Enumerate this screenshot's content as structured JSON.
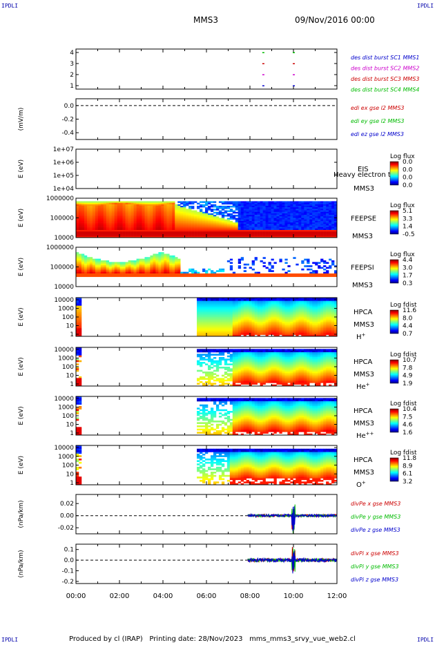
{
  "corners": {
    "tl": "IPDLI",
    "tr": "IPDLI",
    "bl": "IPDLI",
    "br": "IPDLI"
  },
  "header": {
    "spacecraft": "MMS3",
    "date": "09/Nov/2016 00:00"
  },
  "footer": {
    "produced_by": "Produced by cl (IRAP)",
    "printing_date": "Printing date: 28/Nov/2023",
    "filename": "mms_mms3_srvy_vue_web2.cl"
  },
  "time_axis": {
    "ticks": [
      "00:00",
      "02:00",
      "04:00",
      "06:00",
      "08:00",
      "10:00",
      "12:00"
    ]
  },
  "colors": {
    "red": "#cc0000",
    "green": "#00bb00",
    "blue": "#0000cc",
    "magenta": "#cc00cc"
  },
  "chart_data": [
    {
      "type": "scatter",
      "id": "burst",
      "x_unit": "hours",
      "xlim": [
        0,
        12
      ],
      "ylim": [
        0.5,
        4.5
      ],
      "ylabel": "",
      "yticks": [
        "4",
        "3",
        "2",
        "1"
      ],
      "legend": [
        {
          "text": "des dist burst SC1 MMS1",
          "color": "blue"
        },
        {
          "text": "des dist burst SC2 MMS2",
          "color": "magenta"
        },
        {
          "text": "des dist burst SC3 MMS3",
          "color": "red"
        },
        {
          "text": "des dist burst SC4 MMS4",
          "color": "green"
        }
      ],
      "marks": [
        {
          "x": 8.6,
          "y": 4,
          "color": "green"
        },
        {
          "x": 10.0,
          "y": 4,
          "color": "green"
        },
        {
          "x": 8.6,
          "y": 3,
          "color": "red"
        },
        {
          "x": 10.0,
          "y": 3,
          "color": "red"
        },
        {
          "x": 8.6,
          "y": 2,
          "color": "magenta"
        },
        {
          "x": 10.0,
          "y": 2,
          "color": "magenta"
        },
        {
          "x": 8.6,
          "y": 1,
          "color": "blue"
        },
        {
          "x": 10.0,
          "y": 1,
          "color": "blue"
        }
      ]
    },
    {
      "type": "line",
      "id": "edi",
      "ylabel": "(mV/m)",
      "ylim": [
        -0.5,
        0.1
      ],
      "yticks": [
        "0.0",
        "-0.2",
        "-0.4"
      ],
      "legend": [
        {
          "text": "edi ex gse l2 MMS3",
          "color": "red"
        },
        {
          "text": "edi ey gse l2 MMS3",
          "color": "green"
        },
        {
          "text": "edi ez gse l2 MMS3",
          "color": "blue"
        }
      ]
    },
    {
      "type": "heatmap",
      "id": "eis",
      "ylabel": "E (eV)",
      "yticks": [
        "1e+07",
        "1e+06",
        "1e+05",
        "1e+04"
      ],
      "labels": [
        "EIS",
        "MMS3"
      ],
      "overlay": "Heavy electron tof",
      "colorbar": {
        "title": "Log flux",
        "ticks": [
          "0.0",
          "0.0",
          "0.0",
          "0.0"
        ]
      },
      "empty": true
    },
    {
      "type": "heatmap",
      "id": "feepse",
      "ylabel": "E (eV)",
      "yticks": [
        "1000000",
        "100000",
        "10000"
      ],
      "labels": [
        "FEEPSE",
        "MMS3"
      ],
      "colorbar": {
        "title": "Log flux",
        "ticks": [
          "5.1",
          "3.3",
          "1.4",
          "-0.5"
        ]
      }
    },
    {
      "type": "heatmap",
      "id": "feepsi",
      "ylabel": "E (eV)",
      "yticks": [
        "1000000",
        "100000",
        "10000"
      ],
      "labels": [
        "FEEPSI",
        "MMS3"
      ],
      "colorbar": {
        "title": "Log flux",
        "ticks": [
          "4.4",
          "3.0",
          "1.7",
          "0.3"
        ]
      }
    },
    {
      "type": "heatmap",
      "id": "hpca_h",
      "ylabel": "E (eV)",
      "yticks": [
        "10000",
        "1000",
        "100",
        "10",
        "1"
      ],
      "labels": [
        "HPCA",
        "MMS3"
      ],
      "species": "H",
      "charge": "+",
      "colorbar": {
        "title": "Log fdist",
        "ticks": [
          "11.6",
          "8.0",
          "4.4",
          "0.7"
        ]
      }
    },
    {
      "type": "heatmap",
      "id": "hpca_he1",
      "ylabel": "E (eV)",
      "yticks": [
        "10000",
        "1000",
        "100",
        "10",
        "1"
      ],
      "labels": [
        "HPCA",
        "MMS3"
      ],
      "species": "He",
      "charge": "+",
      "colorbar": {
        "title": "Log fdist",
        "ticks": [
          "10.7",
          "7.8",
          "4.9",
          "1.9"
        ]
      }
    },
    {
      "type": "heatmap",
      "id": "hpca_he2",
      "ylabel": "E (eV)",
      "yticks": [
        "10000",
        "1000",
        "100",
        "10",
        "1"
      ],
      "labels": [
        "HPCA",
        "MMS3"
      ],
      "species": "He",
      "charge": "++",
      "colorbar": {
        "title": "Log fdist",
        "ticks": [
          "10.4",
          "7.5",
          "4.6",
          "1.6"
        ]
      }
    },
    {
      "type": "heatmap",
      "id": "hpca_o",
      "ylabel": "E (eV)",
      "yticks": [
        "10000",
        "1000",
        "100",
        "10",
        "1"
      ],
      "labels": [
        "HPCA",
        "MMS3"
      ],
      "species": "O",
      "charge": "+",
      "colorbar": {
        "title": "Log fdist",
        "ticks": [
          "11.8",
          "8.9",
          "6.1",
          "3.2"
        ]
      }
    },
    {
      "type": "line",
      "id": "divpe",
      "ylabel": "(nPa/km)",
      "ylim": [
        -0.03,
        0.035
      ],
      "yticks": [
        "0.02",
        "0.00",
        "-0.02"
      ],
      "legend": [
        {
          "text": "divPe x gse MMS3",
          "color": "red"
        },
        {
          "text": "divPe y gse MMS3",
          "color": "green"
        },
        {
          "text": "divPe z gse MMS3",
          "color": "blue"
        }
      ]
    },
    {
      "type": "line",
      "id": "divpi",
      "ylabel": "(nPa/km)",
      "ylim": [
        -0.22,
        0.15
      ],
      "yticks": [
        "0.1",
        "0.0",
        "-0.1",
        "-0.2"
      ],
      "legend": [
        {
          "text": "divPi x gse MMS3",
          "color": "red"
        },
        {
          "text": "divPi y gse MMS3",
          "color": "green"
        },
        {
          "text": "divPi z gse MMS3",
          "color": "blue"
        }
      ]
    }
  ]
}
